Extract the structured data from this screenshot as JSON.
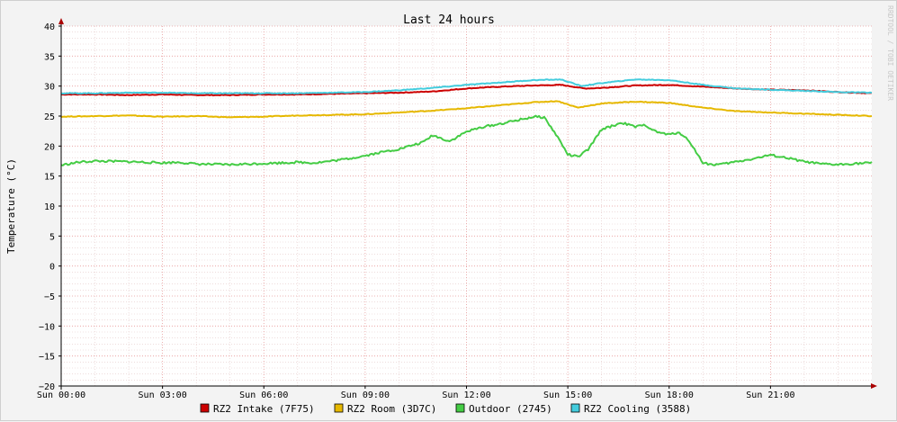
{
  "chart_data": {
    "type": "line",
    "title": "Last 24 hours",
    "ylabel": "Temperature (°C)",
    "watermark": "RRDTOOL / TOBI OETIKER",
    "ylim": [
      -20,
      40
    ],
    "xlim_hours": [
      0,
      24
    ],
    "y_ticks": [
      40,
      35,
      30,
      25,
      20,
      15,
      10,
      5,
      0,
      -5,
      -10,
      -15,
      -20
    ],
    "x_tick_labels": [
      "Sun 00:00",
      "Sun 03:00",
      "Sun 06:00",
      "Sun 09:00",
      "Sun 12:00",
      "Sun 15:00",
      "Sun 18:00",
      "Sun 21:00"
    ],
    "x_tick_hours": [
      0,
      3,
      6,
      9,
      12,
      15,
      18,
      21
    ],
    "grid": true,
    "legend_position": "bottom",
    "series": [
      {
        "name": "RZ2 Intake (7F75)",
        "color": "#cc0000",
        "x": [
          0,
          1,
          2,
          3,
          4,
          5,
          6,
          7,
          8,
          9,
          10,
          11,
          12,
          13,
          14,
          14.8,
          15.5,
          16,
          17,
          18,
          19,
          20,
          21,
          22,
          23,
          24
        ],
        "y": [
          28.6,
          28.6,
          28.5,
          28.6,
          28.5,
          28.5,
          28.6,
          28.6,
          28.7,
          28.8,
          28.9,
          29.1,
          29.6,
          29.9,
          30.1,
          30.2,
          29.6,
          29.7,
          30.1,
          30.2,
          29.9,
          29.6,
          29.4,
          29.3,
          29.0,
          28.8
        ]
      },
      {
        "name": "RZ2 Room (3D7C)",
        "color": "#e6b800",
        "x": [
          0,
          1,
          2,
          3,
          4,
          5,
          6,
          7,
          8,
          9,
          10,
          11,
          12,
          13,
          14,
          14.7,
          15.3,
          16,
          17,
          18,
          19,
          20,
          21,
          22,
          23,
          24
        ],
        "y": [
          24.9,
          25.0,
          25.1,
          24.9,
          25.0,
          24.8,
          24.9,
          25.1,
          25.2,
          25.3,
          25.6,
          25.9,
          26.3,
          26.8,
          27.3,
          27.5,
          26.4,
          27.1,
          27.4,
          27.2,
          26.4,
          25.8,
          25.6,
          25.4,
          25.2,
          25.0
        ]
      },
      {
        "name": "Outdoor (2745)",
        "color": "#44cc44",
        "x": [
          0,
          0.5,
          1,
          2,
          3,
          3.5,
          4,
          5,
          6,
          7,
          7.5,
          8,
          8.5,
          9,
          9.5,
          10,
          10.7,
          11,
          11.5,
          12,
          12.5,
          13,
          13.5,
          14,
          14.3,
          14.7,
          15,
          15.3,
          15.6,
          16,
          16.3,
          16.6,
          17,
          17.3,
          17.6,
          18,
          18.3,
          18.6,
          19,
          19.3,
          19.6,
          20,
          20.5,
          21,
          21.5,
          22,
          22.5,
          23,
          23.5,
          24
        ],
        "y": [
          16.8,
          17.3,
          17.5,
          17.4,
          17.2,
          17.3,
          17.0,
          16.9,
          17.1,
          17.3,
          17.2,
          17.5,
          17.9,
          18.4,
          19.0,
          19.5,
          20.6,
          21.8,
          20.8,
          22.4,
          23.2,
          23.7,
          24.3,
          24.9,
          24.8,
          21.5,
          18.6,
          18.2,
          19.4,
          22.8,
          23.3,
          23.9,
          23.2,
          23.5,
          22.4,
          21.9,
          22.3,
          20.8,
          17.2,
          16.9,
          17.0,
          17.4,
          17.9,
          18.5,
          18.0,
          17.4,
          17.0,
          16.9,
          17.1,
          17.2
        ]
      },
      {
        "name": "RZ2 Cooling (3588)",
        "color": "#44ccdd",
        "x": [
          0,
          1,
          2,
          3,
          4,
          5,
          6,
          7,
          8,
          9,
          10,
          11,
          12,
          13,
          14,
          14.8,
          15.4,
          16,
          17,
          18,
          19,
          20,
          21,
          22,
          23,
          24
        ],
        "y": [
          28.8,
          28.8,
          28.9,
          28.9,
          28.8,
          28.8,
          28.8,
          28.8,
          28.9,
          29.0,
          29.3,
          29.7,
          30.2,
          30.6,
          31.0,
          31.1,
          30.0,
          30.5,
          31.1,
          31.0,
          30.2,
          29.6,
          29.4,
          29.2,
          29.0,
          28.9
        ]
      }
    ]
  }
}
